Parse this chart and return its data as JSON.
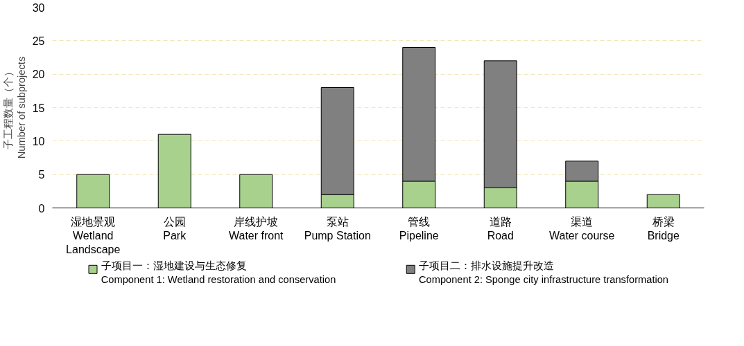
{
  "chart_data": {
    "type": "bar",
    "stacked": true,
    "ylabel": "子工程数量（个）\nNumber of subprojects",
    "categories": [
      "湿地景观\nWetland\nLandscape",
      "公园\nPark",
      "岸线护坡\nWater front",
      "泵站\nPump Station",
      "管线\nPipeline",
      "道路\nRoad",
      "渠道\nWater course",
      "桥梁\nBridge"
    ],
    "series": [
      {
        "name": "子项目一：湿地建设与生态修复\nComponent 1: Wetland restoration and conservation",
        "color": "#a9d18e",
        "values": [
          5,
          11,
          5,
          2,
          4,
          3,
          4,
          2
        ]
      },
      {
        "name": "子项目二：排水设施提升改造\nComponent 2: Sponge city infrastructure transformation",
        "color": "#808080",
        "values": [
          null,
          null,
          null,
          16,
          20,
          19,
          3,
          null
        ]
      }
    ],
    "ylim": [
      0,
      30
    ],
    "yticks": [
      0,
      5,
      10,
      15,
      20,
      25,
      30
    ],
    "grid": "y",
    "legend": "bottom"
  }
}
